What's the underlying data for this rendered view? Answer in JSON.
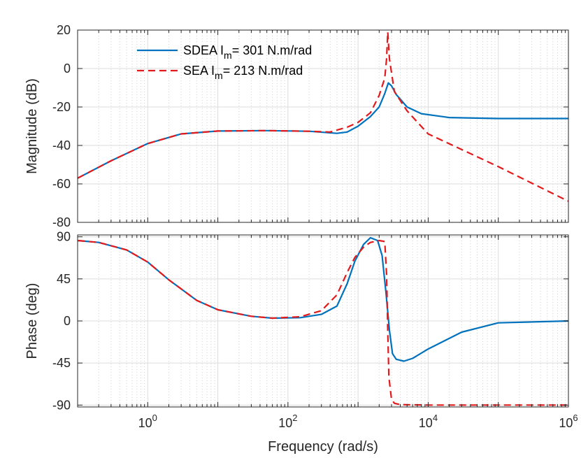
{
  "chart_data": [
    {
      "type": "line",
      "panel": "magnitude",
      "xscale": "log",
      "xlim": [
        0.1,
        1000000
      ],
      "ylim": [
        -80,
        20
      ],
      "yticks": [
        20,
        0,
        -20,
        -40,
        -60,
        -80
      ],
      "ytick_labels": [
        "20",
        "0",
        "-20",
        "-40",
        "-60",
        "-80"
      ],
      "ylabel": "Magnitude (dB)",
      "grid": true,
      "legend": {
        "placement": "top-left",
        "entries": [
          {
            "prefix": "SDEA I",
            "sub": "m",
            "suffix": "= 301 N.m/rad",
            "color": "#0072BD",
            "dash": "solid"
          },
          {
            "prefix": "SEA I",
            "sub": "m",
            "suffix": "= 213 N.m/rad",
            "color": "#E31A1C",
            "dash": "dashed"
          }
        ]
      },
      "series": [
        {
          "name": "SDEA Im= 301 N.m/rad",
          "color": "#0072BD",
          "style": "solid",
          "x": [
            0.1,
            0.3,
            1,
            3,
            10,
            50,
            200,
            500,
            700,
            1000,
            1500,
            2000,
            2400,
            2700,
            3000,
            3500,
            5000,
            8000,
            20000,
            100000,
            1000000
          ],
          "y": [
            -57,
            -48,
            -39,
            -34,
            -32.5,
            -32.3,
            -32.6,
            -33.7,
            -33,
            -30,
            -25,
            -20,
            -13,
            -7.5,
            -9,
            -13.5,
            -20,
            -23.5,
            -25.5,
            -26,
            -26
          ]
        },
        {
          "name": "SEA Im= 213 N.m/rad",
          "color": "#E31A1C",
          "style": "dashed",
          "x": [
            0.1,
            0.3,
            1,
            3,
            10,
            50,
            200,
            400,
            700,
            1000,
            1500,
            2000,
            2400,
            2550,
            2650,
            2800,
            3300,
            5000,
            10000,
            100000,
            1000000
          ],
          "y": [
            -57,
            -48,
            -39,
            -34,
            -32.5,
            -32.3,
            -32.6,
            -33,
            -30.5,
            -28,
            -23,
            -14,
            -5,
            5,
            19,
            5,
            -12,
            -22,
            -34,
            -51,
            -69
          ]
        }
      ]
    },
    {
      "type": "line",
      "panel": "phase",
      "xscale": "log",
      "xlim": [
        0.1,
        1000000
      ],
      "ylim": [
        -92,
        92
      ],
      "yticks": [
        90,
        45,
        0,
        -45,
        -90
      ],
      "ytick_labels": [
        "90",
        "45",
        "0",
        "-45",
        "-90"
      ],
      "xticks": [
        1,
        100,
        10000,
        1000000
      ],
      "xtick_labels": [
        {
          "base": "10",
          "exp": "0"
        },
        {
          "base": "10",
          "exp": "2"
        },
        {
          "base": "10",
          "exp": "4"
        },
        {
          "base": "10",
          "exp": "6"
        }
      ],
      "xlabel": "Frequency  (rad/s)",
      "ylabel": "Phase (deg)",
      "grid": true,
      "series": [
        {
          "name": "SDEA Im= 301 N.m/rad",
          "color": "#0072BD",
          "style": "solid",
          "x": [
            0.1,
            0.2,
            0.5,
            1,
            2,
            5,
            10,
            30,
            60,
            150,
            300,
            500,
            700,
            900,
            1200,
            1500,
            1900,
            2200,
            2500,
            2800,
            3100,
            3500,
            4500,
            6000,
            10000,
            30000,
            100000,
            1000000
          ],
          "y": [
            86,
            84,
            76,
            63,
            44,
            22,
            12,
            5,
            3,
            3.5,
            7,
            16,
            40,
            64,
            82,
            89,
            86,
            70,
            30,
            -10,
            -35,
            -41,
            -43,
            -40,
            -30,
            -12,
            -2,
            0
          ]
        },
        {
          "name": "SEA Im= 213 N.m/rad",
          "color": "#E31A1C",
          "style": "dashed",
          "x": [
            0.1,
            0.2,
            0.5,
            1,
            2,
            5,
            10,
            30,
            60,
            150,
            300,
            500,
            700,
            900,
            1200,
            1500,
            2000,
            2400,
            2550,
            2650,
            2750,
            3000,
            3300,
            4000,
            10000,
            1000000
          ],
          "y": [
            86,
            84,
            76,
            63,
            44,
            22,
            12,
            5,
            3,
            4.5,
            11,
            28,
            52,
            68,
            79,
            84,
            86,
            85,
            50,
            -10,
            -60,
            -84,
            -88,
            -89.5,
            -90,
            -90
          ]
        }
      ]
    }
  ]
}
